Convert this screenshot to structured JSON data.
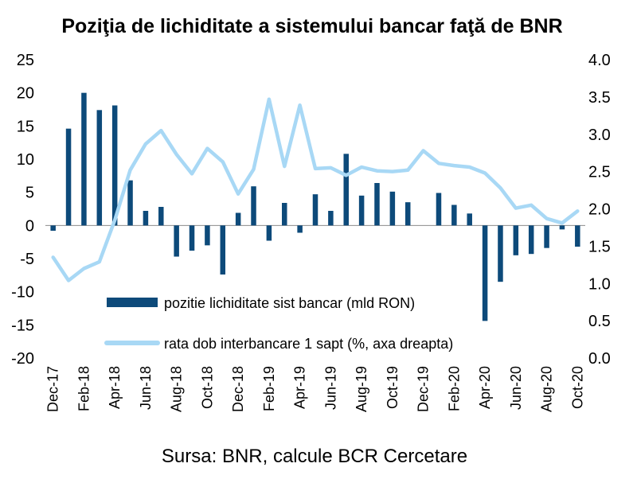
{
  "chart_data": {
    "type": "bar+line",
    "title": "Poziţia de lichiditate a sistemului bancar faţă de BNR",
    "source": "Sursa: BNR, calcule BCR Cercetare",
    "months": [
      "Dec-17",
      "Jan-18",
      "Feb-18",
      "Mar-18",
      "Apr-18",
      "May-18",
      "Jun-18",
      "Jul-18",
      "Aug-18",
      "Sep-18",
      "Oct-18",
      "Nov-18",
      "Dec-18",
      "Jan-19",
      "Feb-19",
      "Mar-19",
      "Apr-19",
      "May-19",
      "Jun-19",
      "Jul-19",
      "Aug-19",
      "Sep-19",
      "Oct-19",
      "Nov-19",
      "Dec-19",
      "Jan-20",
      "Feb-20",
      "Mar-20",
      "Apr-20",
      "May-20",
      "Jun-20",
      "Jul-20",
      "Aug-20",
      "Sep-20",
      "Oct-20"
    ],
    "x_tick_labels": [
      "Dec-17",
      "Feb-18",
      "Apr-18",
      "Jun-18",
      "Aug-18",
      "Oct-18",
      "Dec-18",
      "Feb-19",
      "Apr-19",
      "Jun-19",
      "Aug-19",
      "Oct-19",
      "Dec-19",
      "Feb-20",
      "Apr-20",
      "Jun-20",
      "Aug-20",
      "Oct-20"
    ],
    "y_left": {
      "ticks": [
        "25",
        "20",
        "15",
        "10",
        "5",
        "0",
        "-5",
        "-10",
        "-15",
        "-20"
      ],
      "range": [
        -20,
        25
      ]
    },
    "y_right": {
      "ticks": [
        "4.0",
        "3.5",
        "3.0",
        "2.5",
        "2.0",
        "1.5",
        "1.0",
        "0.5",
        "0.0"
      ],
      "range": [
        0,
        4
      ]
    },
    "series": [
      {
        "name": "pozitie lichiditate sist bancar (mld RON)",
        "type": "bar",
        "axis": "left",
        "color": "#0d4a7a",
        "values": [
          -0.8,
          14.6,
          20.0,
          17.4,
          18.1,
          6.8,
          2.2,
          2.8,
          -4.7,
          -3.8,
          -3.0,
          -7.4,
          1.9,
          5.9,
          -2.3,
          3.4,
          -1.1,
          4.7,
          2.2,
          10.8,
          4.5,
          6.4,
          5.1,
          3.5,
          0.0,
          4.9,
          3.1,
          1.8,
          -14.4,
          -8.5,
          -4.5,
          -4.3,
          -3.4,
          -0.6,
          -3.2
        ]
      },
      {
        "name": "rata dob interbancare 1 sapt (%, axa dreapta)",
        "type": "line",
        "axis": "right",
        "color": "#a8d8f5",
        "values": [
          1.35,
          1.04,
          1.2,
          1.29,
          1.85,
          2.52,
          2.87,
          3.05,
          2.73,
          2.47,
          2.81,
          2.63,
          2.2,
          2.53,
          3.47,
          2.57,
          3.39,
          2.54,
          2.55,
          2.45,
          2.56,
          2.51,
          2.5,
          2.52,
          2.78,
          2.61,
          2.58,
          2.56,
          2.48,
          2.28,
          2.01,
          2.05,
          1.87,
          1.81,
          1.97
        ]
      }
    ],
    "grid": false,
    "legend_position": "bottom-center, inside plot"
  }
}
